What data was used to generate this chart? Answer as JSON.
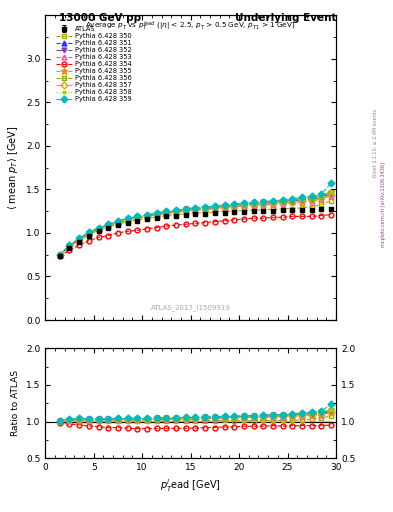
{
  "title_left": "13000 GeV pp",
  "title_right": "Underlying Event",
  "watermark": "ATLAS_2017_I1509919",
  "ylim_main": [
    0.0,
    3.5
  ],
  "ylim_ratio": [
    0.5,
    2.0
  ],
  "xlim": [
    0,
    30
  ],
  "x_data": [
    1.5,
    2.5,
    3.5,
    4.5,
    5.5,
    6.5,
    7.5,
    8.5,
    9.5,
    10.5,
    11.5,
    12.5,
    13.5,
    14.5,
    15.5,
    16.5,
    17.5,
    18.5,
    19.5,
    20.5,
    21.5,
    22.5,
    23.5,
    24.5,
    25.5,
    26.5,
    27.5,
    28.5,
    29.5
  ],
  "atlas_y": [
    0.74,
    0.83,
    0.9,
    0.97,
    1.02,
    1.06,
    1.09,
    1.12,
    1.14,
    1.16,
    1.17,
    1.19,
    1.2,
    1.21,
    1.22,
    1.22,
    1.23,
    1.23,
    1.24,
    1.24,
    1.25,
    1.25,
    1.25,
    1.26,
    1.26,
    1.26,
    1.26,
    1.27,
    1.27
  ],
  "atlas_err": [
    0.02,
    0.015,
    0.013,
    0.012,
    0.011,
    0.01,
    0.01,
    0.01,
    0.009,
    0.009,
    0.009,
    0.009,
    0.009,
    0.009,
    0.009,
    0.009,
    0.009,
    0.009,
    0.009,
    0.009,
    0.009,
    0.009,
    0.01,
    0.01,
    0.01,
    0.011,
    0.011,
    0.012,
    0.015
  ],
  "series": [
    {
      "label": "Pythia 6.428 350",
      "color": "#aaaa00",
      "marker": "s",
      "linestyle": "--",
      "fillstyle": "none",
      "y": [
        0.74,
        0.84,
        0.91,
        0.98,
        1.03,
        1.07,
        1.1,
        1.13,
        1.15,
        1.17,
        1.18,
        1.2,
        1.21,
        1.22,
        1.23,
        1.23,
        1.24,
        1.25,
        1.25,
        1.26,
        1.26,
        1.27,
        1.27,
        1.28,
        1.28,
        1.29,
        1.3,
        1.33,
        1.37
      ]
    },
    {
      "label": "Pythia 6.428 351",
      "color": "#3333ff",
      "marker": "^",
      "linestyle": "--",
      "fillstyle": "full",
      "y": [
        0.75,
        0.85,
        0.93,
        1.0,
        1.05,
        1.09,
        1.13,
        1.16,
        1.18,
        1.2,
        1.22,
        1.23,
        1.24,
        1.26,
        1.27,
        1.28,
        1.29,
        1.3,
        1.31,
        1.32,
        1.33,
        1.34,
        1.35,
        1.36,
        1.37,
        1.38,
        1.39,
        1.41,
        1.45
      ]
    },
    {
      "label": "Pythia 6.428 352",
      "color": "#7744bb",
      "marker": "v",
      "linestyle": "-.",
      "fillstyle": "full",
      "y": [
        0.75,
        0.85,
        0.93,
        1.0,
        1.05,
        1.09,
        1.13,
        1.16,
        1.18,
        1.2,
        1.22,
        1.24,
        1.25,
        1.27,
        1.28,
        1.29,
        1.3,
        1.31,
        1.32,
        1.33,
        1.34,
        1.35,
        1.36,
        1.37,
        1.38,
        1.39,
        1.4,
        1.42,
        1.46
      ]
    },
    {
      "label": "Pythia 6.428 353",
      "color": "#ff44aa",
      "marker": "^",
      "linestyle": "--",
      "fillstyle": "none",
      "y": [
        0.75,
        0.85,
        0.92,
        0.99,
        1.04,
        1.08,
        1.12,
        1.15,
        1.17,
        1.19,
        1.21,
        1.22,
        1.24,
        1.25,
        1.26,
        1.27,
        1.28,
        1.29,
        1.3,
        1.31,
        1.32,
        1.32,
        1.33,
        1.34,
        1.35,
        1.36,
        1.37,
        1.39,
        1.43
      ]
    },
    {
      "label": "Pythia 6.428 354",
      "color": "#ff0000",
      "marker": "o",
      "linestyle": "--",
      "fillstyle": "none",
      "y": [
        0.73,
        0.8,
        0.86,
        0.91,
        0.95,
        0.97,
        1.0,
        1.02,
        1.03,
        1.05,
        1.06,
        1.08,
        1.09,
        1.1,
        1.11,
        1.12,
        1.13,
        1.14,
        1.15,
        1.16,
        1.17,
        1.17,
        1.18,
        1.18,
        1.19,
        1.19,
        1.19,
        1.2,
        1.21
      ]
    },
    {
      "label": "Pythia 6.428 355",
      "color": "#ff8800",
      "marker": "*",
      "linestyle": "--",
      "fillstyle": "full",
      "y": [
        0.75,
        0.85,
        0.93,
        1.0,
        1.05,
        1.09,
        1.13,
        1.16,
        1.18,
        1.2,
        1.22,
        1.24,
        1.25,
        1.27,
        1.28,
        1.29,
        1.3,
        1.31,
        1.32,
        1.33,
        1.34,
        1.35,
        1.36,
        1.37,
        1.38,
        1.39,
        1.41,
        1.43,
        1.47
      ]
    },
    {
      "label": "Pythia 6.428 356",
      "color": "#88aa00",
      "marker": "s",
      "linestyle": "--",
      "fillstyle": "none",
      "y": [
        0.75,
        0.85,
        0.93,
        1.0,
        1.05,
        1.09,
        1.13,
        1.16,
        1.18,
        1.2,
        1.22,
        1.24,
        1.25,
        1.27,
        1.28,
        1.29,
        1.3,
        1.31,
        1.32,
        1.33,
        1.34,
        1.35,
        1.36,
        1.37,
        1.38,
        1.39,
        1.4,
        1.43,
        1.47
      ]
    },
    {
      "label": "Pythia 6.428 357",
      "color": "#ddaa00",
      "marker": "D",
      "linestyle": "-.",
      "fillstyle": "none",
      "y": [
        0.75,
        0.85,
        0.92,
        0.99,
        1.04,
        1.08,
        1.12,
        1.15,
        1.17,
        1.19,
        1.21,
        1.23,
        1.24,
        1.26,
        1.27,
        1.28,
        1.29,
        1.3,
        1.31,
        1.32,
        1.33,
        1.33,
        1.34,
        1.35,
        1.36,
        1.37,
        1.38,
        1.4,
        1.44
      ]
    },
    {
      "label": "Pythia 6.428 358",
      "color": "#aacc00",
      "marker": ".",
      "linestyle": ":",
      "fillstyle": "full",
      "y": [
        0.75,
        0.85,
        0.93,
        1.0,
        1.05,
        1.09,
        1.13,
        1.16,
        1.18,
        1.2,
        1.22,
        1.24,
        1.25,
        1.27,
        1.28,
        1.29,
        1.3,
        1.31,
        1.32,
        1.33,
        1.34,
        1.35,
        1.36,
        1.37,
        1.38,
        1.39,
        1.41,
        1.43,
        1.48
      ]
    },
    {
      "label": "Pythia 6.428 359",
      "color": "#00bbbb",
      "marker": "D",
      "linestyle": "--",
      "fillstyle": "full",
      "y": [
        0.75,
        0.86,
        0.94,
        1.01,
        1.06,
        1.1,
        1.14,
        1.17,
        1.19,
        1.21,
        1.23,
        1.25,
        1.26,
        1.28,
        1.29,
        1.3,
        1.31,
        1.32,
        1.33,
        1.34,
        1.35,
        1.36,
        1.37,
        1.38,
        1.39,
        1.41,
        1.42,
        1.45,
        1.57
      ]
    }
  ]
}
